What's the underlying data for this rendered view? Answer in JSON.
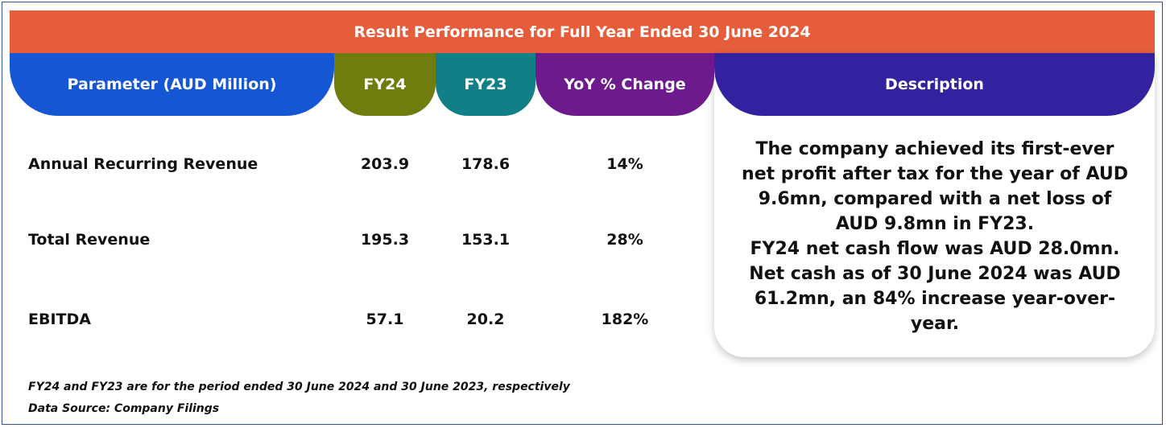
{
  "title": "Result Performance for Full Year Ended 30 June 2024",
  "headers": {
    "parameter": "Parameter (AUD Million)",
    "fy24": "FY24",
    "fy23": "FY23",
    "yoy": "YoY % Change",
    "description": "Description"
  },
  "colors": {
    "title_bar": "#e55d3b",
    "parameter_header": "#1456d4",
    "fy24_header": "#6f7d0f",
    "fy23_header": "#117f86",
    "yoy_header": "#6c1a8c",
    "description_header": "#3322a0"
  },
  "rows": [
    {
      "parameter": "Annual Recurring Revenue",
      "fy24": "203.9",
      "fy23": "178.6",
      "yoy": "14%"
    },
    {
      "parameter": "Total Revenue",
      "fy24": "195.3",
      "fy23": "153.1",
      "yoy": "28%"
    },
    {
      "parameter": "EBITDA",
      "fy24": "57.1",
      "fy23": "20.2",
      "yoy": "182%"
    }
  ],
  "description_lines": [
    "The company achieved its first-ever",
    "net profit after tax for the year of AUD",
    "9.6mn, compared with a net loss of",
    "AUD 9.8mn in FY23.",
    "FY24 net cash flow was AUD 28.0mn.",
    "Net cash as of 30 June 2024 was AUD",
    "61.2mn, an 84% increase year-over-",
    "year."
  ],
  "footnotes": {
    "period_note": "FY24 and FY23 are for the period ended 30 June 2024 and 30 June 2023, respectively",
    "source": "Data Source: Company Filings"
  }
}
